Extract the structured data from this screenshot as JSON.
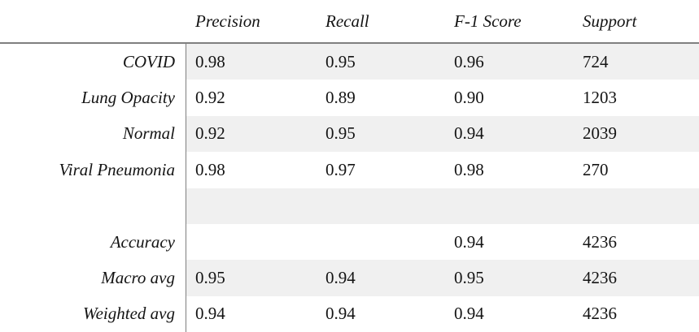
{
  "chart_data": {
    "type": "table",
    "title": "",
    "columns": [
      "Precision",
      "Recall",
      "F-1 Score",
      "Support"
    ],
    "rows": [
      {
        "label": "COVID",
        "values": [
          "0.98",
          "0.95",
          "0.96",
          "724"
        ],
        "shaded": true
      },
      {
        "label": "Lung Opacity",
        "values": [
          "0.92",
          "0.89",
          "0.90",
          "1203"
        ],
        "shaded": false
      },
      {
        "label": "Normal",
        "values": [
          "0.92",
          "0.95",
          "0.94",
          "2039"
        ],
        "shaded": true
      },
      {
        "label": "Viral Pneumonia",
        "values": [
          "0.98",
          "0.97",
          "0.98",
          "270"
        ],
        "shaded": false
      },
      {
        "label": "",
        "values": [
          "",
          "",
          "",
          ""
        ],
        "shaded": true
      },
      {
        "label": "Accuracy",
        "values": [
          "",
          "",
          "0.94",
          "4236"
        ],
        "shaded": false
      },
      {
        "label": "Macro avg",
        "values": [
          "0.95",
          "0.94",
          "0.95",
          "4236"
        ],
        "shaded": true
      },
      {
        "label": "Weighted avg",
        "values": [
          "0.94",
          "0.94",
          "0.94",
          "4236"
        ],
        "shaded": false
      }
    ]
  },
  "colors": {
    "row_shade": "#f0f0f0",
    "rule": "#7f7f7f",
    "text": "#141414",
    "background": "#ffffff"
  }
}
